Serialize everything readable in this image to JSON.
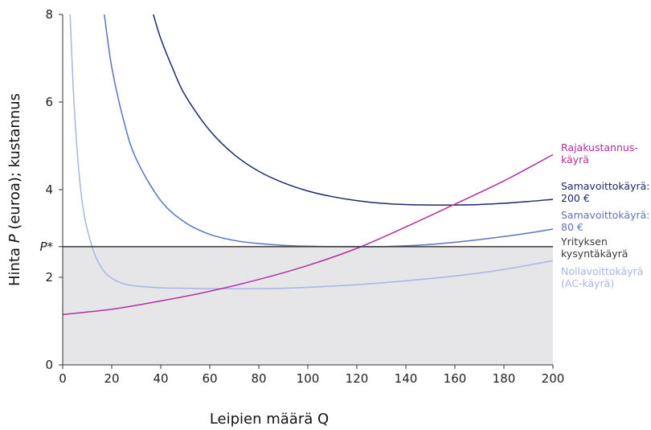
{
  "chart_data": {
    "type": "line",
    "title": "",
    "xlabel": "Leipien määrä Q",
    "ylabel_prefix": "Hinta ",
    "ylabel_italic": "P",
    "ylabel_suffix": " (euroa); kustannus",
    "xlim": [
      0,
      200
    ],
    "ylim": [
      0,
      8
    ],
    "x_ticks": [
      "0",
      "20",
      "40",
      "60",
      "80",
      "100",
      "120",
      "140",
      "160",
      "180",
      "200"
    ],
    "y_ticks": [
      {
        "value": 0,
        "label": "0"
      },
      {
        "value": 2,
        "label": "2"
      },
      {
        "value": 2.7,
        "label": "P*"
      },
      {
        "value": 4,
        "label": "4"
      },
      {
        "value": 6,
        "label": "6"
      },
      {
        "value": 8,
        "label": "8"
      }
    ],
    "grid": false,
    "shaded_region": {
      "x": [
        0,
        200
      ],
      "y": [
        0,
        2.7
      ],
      "color": "#e6e6e9"
    },
    "series": [
      {
        "key": "zero_profit",
        "label_lines": [
          "Nollavoittokäyrä",
          "(AC-käyrä)"
        ],
        "color": "#a7b6e3",
        "x": [
          3,
          5,
          8,
          12,
          16,
          20,
          25,
          30,
          40,
          50,
          60,
          70,
          80,
          90,
          100,
          120,
          140,
          160,
          180,
          200
        ],
        "y": [
          8.0,
          5.6,
          3.7,
          2.7,
          2.2,
          1.98,
          1.85,
          1.8,
          1.76,
          1.75,
          1.74,
          1.74,
          1.74,
          1.75,
          1.77,
          1.83,
          1.92,
          2.03,
          2.18,
          2.38
        ]
      },
      {
        "key": "isoprofit_80",
        "label_lines": [
          "Samavoittokäyrä:",
          "80 €"
        ],
        "color": "#5b74c0",
        "x": [
          17,
          20,
          25,
          30,
          40,
          50,
          60,
          70,
          80,
          90,
          100,
          110,
          120,
          130,
          140,
          150,
          160,
          170,
          180,
          190,
          200
        ],
        "y": [
          8.0,
          6.8,
          5.55,
          4.7,
          3.75,
          3.25,
          2.98,
          2.84,
          2.77,
          2.73,
          2.71,
          2.7,
          2.7,
          2.7,
          2.72,
          2.75,
          2.8,
          2.86,
          2.93,
          3.01,
          3.1
        ]
      },
      {
        "key": "isoprofit_200",
        "label_lines": [
          "Samavoittokäyrä:",
          "200 €"
        ],
        "color": "#1b2a6b",
        "x": [
          37,
          40,
          45,
          50,
          60,
          70,
          80,
          90,
          100,
          110,
          120,
          130,
          140,
          150,
          155,
          160,
          170,
          180,
          190,
          200
        ],
        "y": [
          8.0,
          7.45,
          6.75,
          6.15,
          5.35,
          4.8,
          4.42,
          4.16,
          3.97,
          3.84,
          3.75,
          3.69,
          3.66,
          3.65,
          3.65,
          3.65,
          3.66,
          3.69,
          3.73,
          3.78
        ]
      },
      {
        "key": "marginal_cost",
        "label_lines": [
          "Rajakustannus-",
          "käyrä"
        ],
        "color": "#b12fa0",
        "x": [
          0,
          20,
          40,
          60,
          80,
          100,
          120,
          140,
          160,
          180,
          200
        ],
        "y": [
          1.15,
          1.27,
          1.46,
          1.68,
          1.95,
          2.27,
          2.66,
          3.15,
          3.67,
          4.2,
          4.8
        ]
      },
      {
        "key": "demand",
        "label_lines": [
          "Yrityksen",
          "kysyntäkäyrä"
        ],
        "color": "#3a3a3a",
        "x": [
          0,
          200
        ],
        "y": [
          2.7,
          2.7
        ]
      }
    ]
  }
}
